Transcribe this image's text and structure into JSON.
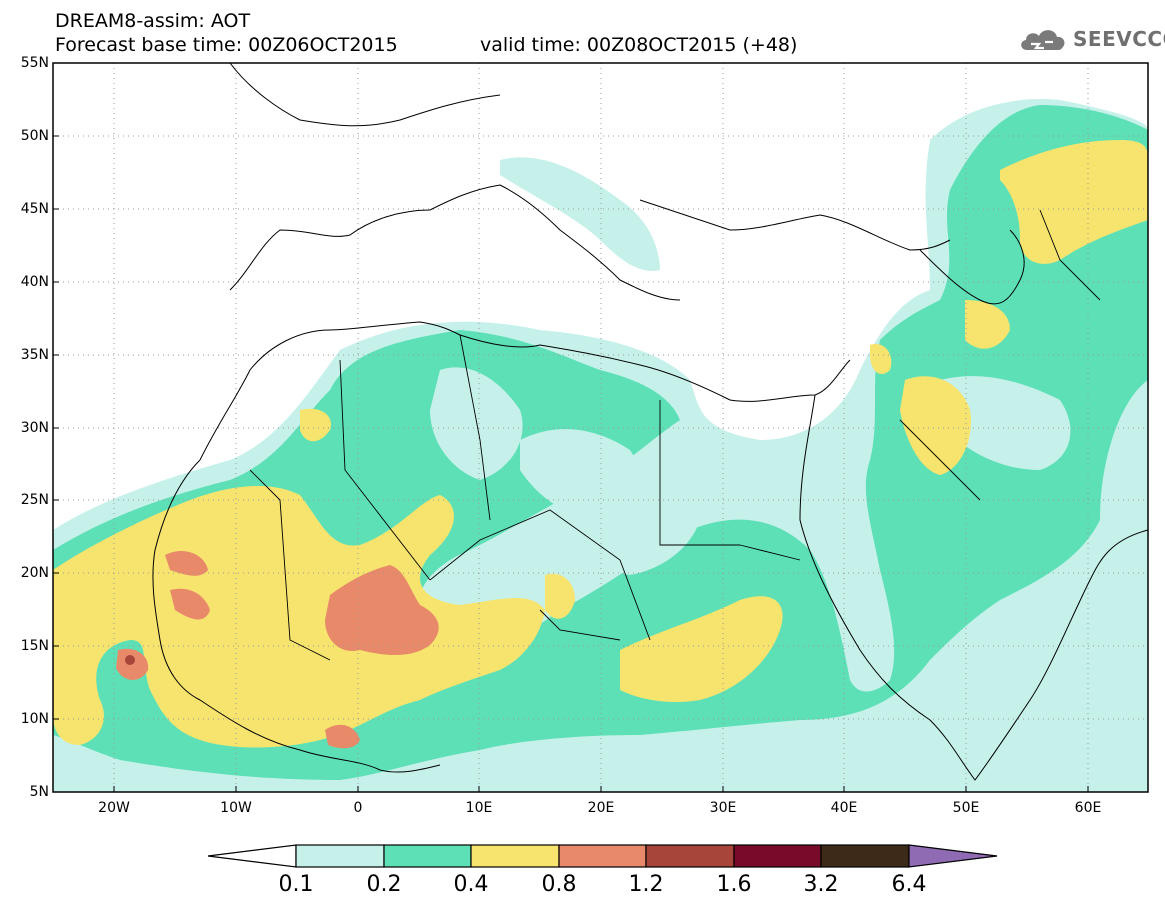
{
  "header": {
    "title_line1": "DREAM8-assim: AOT",
    "title_line2": "Forecast base time: 00Z06OCT2015",
    "valid_time": "valid time: 00Z08OCT2015 (+48)",
    "logo_text": "SEEVCCC",
    "logo_icon": "cloud-icon"
  },
  "map": {
    "lat_labels": [
      "55N",
      "50N",
      "45N",
      "40N",
      "35N",
      "30N",
      "25N",
      "20N",
      "15N",
      "10N",
      "5N"
    ],
    "lon_labels": [
      "20W",
      "10W",
      "0",
      "10E",
      "20E",
      "30E",
      "40E",
      "50E",
      "60E"
    ],
    "lat_range": [
      5,
      55
    ],
    "lon_range": [
      -25,
      65
    ],
    "grid": "dotted"
  },
  "colorbar": {
    "labels": [
      "0.1",
      "0.2",
      "0.4",
      "0.8",
      "1.2",
      "1.6",
      "3.2",
      "6.4"
    ],
    "colors": [
      "#ffffff",
      "#c6f1ea",
      "#5ee0b7",
      "#f7e46f",
      "#e8896a",
      "#a8453b",
      "#7a0a2a",
      "#3d2a18",
      "#8f6bb3"
    ]
  },
  "aot_colors": {
    "level_0_1": "#c6f1ea",
    "level_0_2": "#5ee0b7",
    "level_0_4": "#f7e46f",
    "level_0_8": "#e8896a",
    "level_1_2": "#a8453b"
  }
}
